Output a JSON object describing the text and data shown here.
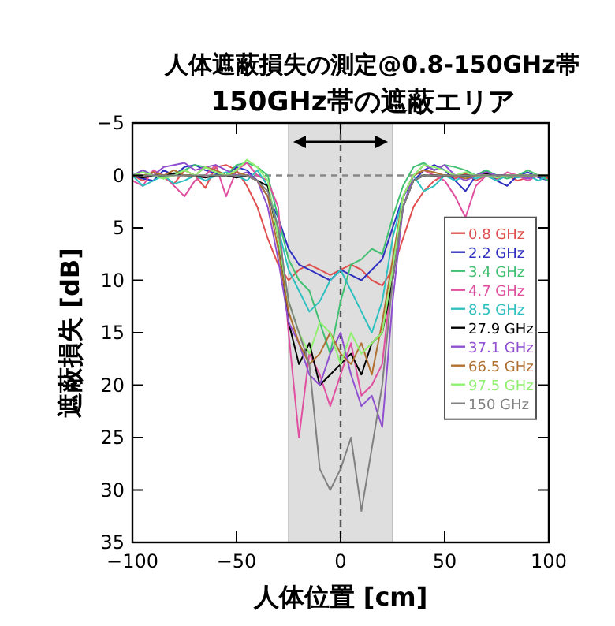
{
  "chart_data": {
    "type": "line",
    "title": "人体遮蔽損失の測定@0.8-150GHz帯",
    "subtitle": "150GHz帯の遮蔽エリア",
    "xlabel": "人体位置 [cm]",
    "ylabel": "遮蔽損失 [dB]",
    "x": [
      -100,
      -95,
      -90,
      -85,
      -80,
      -75,
      -70,
      -65,
      -60,
      -55,
      -50,
      -45,
      -40,
      -35,
      -30,
      -25,
      -20,
      -15,
      -10,
      -5,
      0,
      5,
      10,
      15,
      20,
      25,
      30,
      35,
      40,
      45,
      50,
      55,
      60,
      65,
      70,
      75,
      80,
      85,
      90,
      95,
      100
    ],
    "xlim": [
      -100,
      100
    ],
    "xticks": [
      -100,
      -50,
      0,
      50,
      100
    ],
    "ylim": [
      35,
      -5
    ],
    "yticks": [
      -5,
      0,
      5,
      10,
      15,
      20,
      25,
      30,
      35
    ],
    "legend": "right",
    "marker": "none",
    "line_style": "solid",
    "ref_lines": [
      {
        "axis": "x",
        "value": 0,
        "line_style": "dashed",
        "color": "#555555"
      },
      {
        "axis": "y",
        "value": 0,
        "line_style": "dashed",
        "color": "#888888"
      }
    ],
    "bands": [
      {
        "axis": "x",
        "from": -25,
        "to": 25,
        "color": "#dedede"
      }
    ],
    "series": [
      {
        "name": "0.8 GHz",
        "color": "#e05050",
        "values": [
          0,
          0.5,
          -0.3,
          0.2,
          0.8,
          -0.5,
          0,
          1.2,
          -0.8,
          -1,
          -0.5,
          1,
          3,
          6,
          8.5,
          10,
          9,
          8.5,
          9,
          9.5,
          9,
          8.5,
          9,
          10,
          10.5,
          9,
          6,
          3,
          1.5,
          0.5,
          0,
          0.3,
          -0.2,
          0.5,
          0,
          0.3,
          0,
          0.5,
          0.2,
          0,
          0.3
        ]
      },
      {
        "name": "2.2 GHz",
        "color": "#3030c0",
        "values": [
          0,
          0.3,
          0.5,
          -0.5,
          0,
          -0.8,
          -1,
          -0.5,
          -0.2,
          0,
          -0.8,
          -0.5,
          0.5,
          2,
          4,
          7,
          8.5,
          9,
          9.5,
          10,
          9,
          9.5,
          10,
          9,
          8,
          5,
          2,
          0.5,
          -0.5,
          -1,
          -0.5,
          0.5,
          1.5,
          0,
          -0.5,
          0.5,
          1,
          0,
          -0.3,
          0.2,
          0.5
        ]
      },
      {
        "name": "3.4 GHz",
        "color": "#40c070",
        "values": [
          0,
          -0.5,
          0,
          0.3,
          -0.2,
          -0.5,
          -1,
          -0.8,
          -0.5,
          0,
          -1,
          -1.2,
          -0.8,
          0,
          4,
          8,
          10,
          11,
          14,
          17,
          12,
          8.5,
          8,
          7,
          7.5,
          4,
          1,
          -0.8,
          -1.2,
          -0.5,
          -1,
          -0.8,
          -0.5,
          0,
          -0.5,
          0,
          0.3,
          0,
          -0.5,
          0,
          0.5
        ]
      },
      {
        "name": "4.7 GHz",
        "color": "#e050a0",
        "values": [
          0.5,
          1,
          -0.5,
          0,
          1,
          2,
          0.5,
          0,
          -1,
          2,
          -0.5,
          -1.2,
          0,
          0.5,
          3,
          15,
          25,
          17,
          19,
          22,
          19,
          16,
          21,
          20,
          18,
          9,
          2,
          0,
          -0.5,
          0,
          0.5,
          2,
          4,
          1,
          0,
          0.5,
          -0.3,
          0,
          0.5,
          0,
          0
        ]
      },
      {
        "name": "8.5 GHz",
        "color": "#30c0c0",
        "values": [
          0,
          1,
          0.5,
          0,
          0.8,
          0.5,
          0,
          0.5,
          0,
          -0.3,
          0,
          0.5,
          -0.5,
          1,
          5,
          9,
          11,
          13,
          12,
          10,
          9,
          11,
          13,
          15,
          12,
          6,
          2,
          0,
          1.5,
          1,
          0,
          0.5,
          0,
          0.3,
          0,
          0.5,
          0,
          0.2,
          0,
          0.5,
          0
        ]
      },
      {
        "name": "27.9 GHz",
        "color": "#000000",
        "values": [
          0,
          0.2,
          0,
          0,
          -0.2,
          0,
          0,
          0.2,
          0,
          0,
          0.2,
          0,
          0.5,
          1,
          6,
          14,
          18,
          16,
          20,
          19,
          18,
          17,
          19,
          16,
          15,
          10,
          3,
          0.5,
          0,
          0,
          0,
          0,
          0,
          0,
          -0.2,
          0,
          0,
          0,
          0,
          0,
          0
        ]
      },
      {
        "name": "37.1 GHz",
        "color": "#9050d0",
        "values": [
          0,
          -0.5,
          0,
          -0.8,
          -1,
          -1.2,
          -0.5,
          -0.8,
          -1,
          -0.5,
          0,
          -0.3,
          0.5,
          3,
          8,
          14,
          16,
          19,
          20,
          17,
          15,
          19,
          22,
          21,
          24,
          12,
          3,
          0,
          -1,
          -0.5,
          -1,
          0,
          0.5,
          0,
          -0.3,
          0,
          0,
          0,
          0.3,
          0,
          0
        ]
      },
      {
        "name": "66.5 GHz",
        "color": "#b07030",
        "values": [
          0,
          0,
          -0.3,
          0,
          -0.5,
          0,
          0,
          -0.8,
          -0.5,
          0,
          -0.3,
          0,
          0.5,
          2,
          7,
          13,
          16,
          18,
          17,
          15,
          17,
          18,
          16,
          19,
          14,
          8,
          2,
          0,
          -0.5,
          -0.3,
          0,
          0,
          0.3,
          0,
          0,
          0.2,
          0,
          0,
          0,
          0,
          0
        ]
      },
      {
        "name": "97.5 GHz",
        "color": "#90f070",
        "values": [
          0,
          -0.3,
          0,
          0.3,
          0,
          -0.5,
          0,
          -0.8,
          -0.3,
          0,
          -0.5,
          -1.5,
          -0.8,
          0.5,
          6,
          12,
          15,
          17,
          14,
          15,
          18,
          15,
          17,
          16,
          15,
          9,
          2,
          0,
          -1,
          -0.8,
          -0.5,
          0,
          -0.3,
          0,
          0,
          0.2,
          0,
          0,
          0,
          0,
          0
        ]
      },
      {
        "name": "150 GHz",
        "color": "#808080",
        "values": [
          0,
          0,
          0,
          0,
          0,
          0,
          0,
          0,
          0,
          0,
          0,
          0,
          0.5,
          1.5,
          5,
          12,
          15,
          18,
          28,
          30,
          28,
          25,
          32,
          26,
          20,
          10,
          3,
          0.5,
          0,
          0,
          0,
          0,
          0,
          0,
          0,
          0,
          0,
          0,
          0,
          0,
          0
        ]
      }
    ]
  }
}
